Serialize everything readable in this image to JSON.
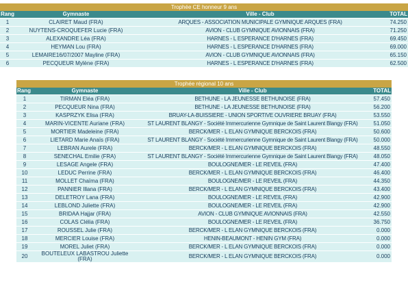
{
  "table1": {
    "title": "Trophée CE honneur 9 ans",
    "header": [
      "Rang",
      "Gymnaste",
      "Ville - Club",
      "TOTAL"
    ],
    "rows": [
      [
        "1",
        "CLAIRET Maud (FRA)",
        "ARQUES - ASSOCIATION MUNICIPALE GYMNIQUE ARQUES (FRA)",
        "74.250"
      ],
      [
        "2",
        "NUYTENS-CROQUEFER Lucie (FRA)",
        "AVION - CLUB GYMNIQUE AVIONNAIS (FRA)",
        "71.250"
      ],
      [
        "3",
        "ALEXANDRE Léa (FRA)",
        "HARNES - L ESPERANCE D'HARNES (FRA)",
        "69.450"
      ],
      [
        "4",
        "HEYMAN Lou (FRA)",
        "HARNES - L ESPERANCE D'HARNES (FRA)",
        "69.000"
      ],
      [
        "5",
        "LEMAIRE16/07/2007 Mayline (FRA)",
        "AVION - CLUB GYMNIQUE AVIONNAIS (FRA)",
        "65.150"
      ],
      [
        "6",
        "PECQUEUR Mylène (FRA)",
        "HARNES - L ESPERANCE D'HARNES (FRA)",
        "62.500"
      ]
    ]
  },
  "table2": {
    "title": "Trophée régional 10 ans",
    "header": [
      "Rang",
      "Gymnaste",
      "Ville - Club",
      "TOTAL"
    ],
    "rows": [
      [
        "1",
        "TIRMAN Eléa (FRA)",
        "BETHUNE - LA JEUNESSE BETHUNOISE (FRA)",
        "57.450"
      ],
      [
        "2",
        "PECQUEUR Nina (FRA)",
        "BETHUNE - LA JEUNESSE BETHUNOISE (FRA)",
        "56.200"
      ],
      [
        "3",
        "KASPRZYK Elisa (FRA)",
        "BRUAY-LA-BUISSIERE - UNION SPORTIVE OUVRIERE BRUAY (FRA)",
        "53.550"
      ],
      [
        "4",
        "MARIN-VICENTE Auriane (FRA)",
        "ST LAURENT BLANGY - Société Immercurienne Gymnique de Saint Laurent Blangy (FRA)",
        "51.050"
      ],
      [
        "5",
        "MORTIER Madeleine (FRA)",
        "BERCK/MER - L ELAN GYMNIQUE BERCKOIS (FRA)",
        "50.600"
      ],
      [
        "6",
        "LIETARD Marie Anaïs (FRA)",
        "ST LAURENT BLANGY - Société Immercurienne Gymnique de Saint Laurent Blangy (FRA)",
        "50.000"
      ],
      [
        "7",
        "LEBRAN Aurele (FRA)",
        "BERCK/MER - L ELAN GYMNIQUE BERCKOIS (FRA)",
        "48.550"
      ],
      [
        "8",
        "SENECHAL Emilie (FRA)",
        "ST LAURENT BLANGY - Société Immercurienne Gymnique de Saint Laurent Blangy (FRA)",
        "48.050"
      ],
      [
        "9",
        "LESAGE Angele (FRA)",
        "BOULOGNE/MER - LE REVEIL (FRA)",
        "47.400"
      ],
      [
        "10",
        "LEDUC Perrine (FRA)",
        "BERCK/MER - L ELAN GYMNIQUE BERCKOIS (FRA)",
        "46.400"
      ],
      [
        "11",
        "MOLLET Chaïma (FRA)",
        "BOULOGNE/MER - LE REVEIL (FRA)",
        "44.350"
      ],
      [
        "12",
        "PANNIER Illana (FRA)",
        "BERCK/MER - L ELAN GYMNIQUE BERCKOIS (FRA)",
        "43.400"
      ],
      [
        "13",
        "DELETROY Lana (FRA)",
        "BOULOGNE/MER - LE REVEIL (FRA)",
        "42.900"
      ],
      [
        "14",
        "LEBLOND Juliette (FRA)",
        "BOULOGNE/MER - LE REVEIL (FRA)",
        "42.900"
      ],
      [
        "15",
        "BRIDAA Hajjar (FRA)",
        "AVION - CLUB GYMNIQUE AVIONNAIS (FRA)",
        "42.550"
      ],
      [
        "16",
        "COLAS Clélia (FRA)",
        "BOULOGNE/MER - LE REVEIL (FRA)",
        "36.750"
      ],
      [
        "17",
        "ROUSSEL Julie (FRA)",
        "BERCK/MER - L ELAN GYMNIQUE BERCKOIS (FRA)",
        "0.000"
      ],
      [
        "18",
        "MERCIER Louise (FRA)",
        "HENIN-BEAUMONT - HENIN GYM (FRA)",
        "0.000"
      ],
      [
        "19",
        "MOREL Juliet (FRA)",
        "BERCK/MER - L ELAN GYMNIQUE BERCKOIS (FRA)",
        "0.000"
      ],
      [
        "20",
        "BOUTELEUX LABASTROU Juliette (FRA)",
        "BERCK/MER - L ELAN GYMNIQUE BERCKOIS (FRA)",
        "0.000"
      ]
    ]
  }
}
